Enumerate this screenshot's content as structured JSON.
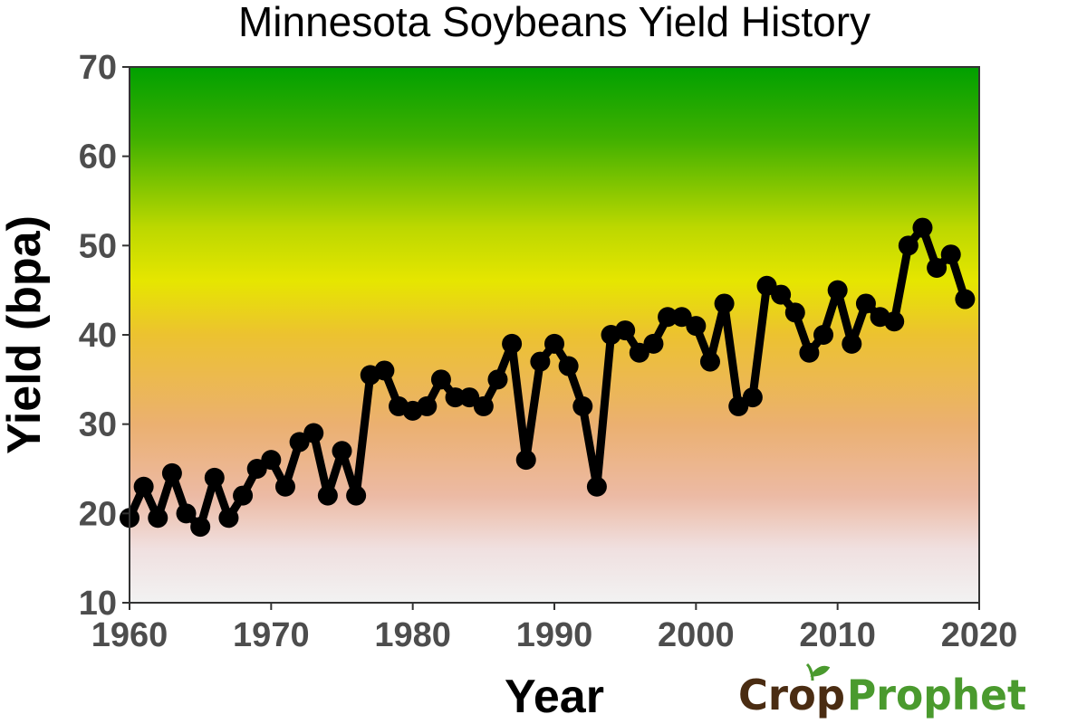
{
  "chart_data": {
    "type": "line",
    "title": "Minnesota Soybeans Yield History",
    "xlabel": "Year",
    "ylabel": "Yield (bpa)",
    "xlim": [
      1960,
      2020
    ],
    "ylim": [
      10,
      70
    ],
    "x_ticks": [
      "1960",
      "1970",
      "1980",
      "1990",
      "2000",
      "2010",
      "2020"
    ],
    "y_ticks": [
      "10",
      "20",
      "30",
      "40",
      "50",
      "60",
      "70"
    ],
    "grid": false,
    "background_gradient": [
      {
        "value": 70,
        "color": "#00a000"
      },
      {
        "value": 62,
        "color": "#40b000"
      },
      {
        "value": 52,
        "color": "#bcd800"
      },
      {
        "value": 46,
        "color": "#e6e600"
      },
      {
        "value": 40,
        "color": "#ecc230"
      },
      {
        "value": 30,
        "color": "#ebb070"
      },
      {
        "value": 22,
        "color": "#ecbaa4"
      },
      {
        "value": 16,
        "color": "#f0e0e0"
      },
      {
        "value": 10,
        "color": "#f2f2f2"
      }
    ],
    "line_color": "#000000",
    "series": [
      {
        "x": [
          1960,
          1961,
          1962,
          1963,
          1964,
          1965,
          1966,
          1967,
          1968,
          1969,
          1970,
          1971,
          1972,
          1973,
          1974,
          1975,
          1976,
          1977,
          1978,
          1979,
          1980,
          1981,
          1982,
          1983,
          1984,
          1985,
          1986,
          1987,
          1988,
          1989,
          1990,
          1991,
          1992,
          1993,
          1994,
          1995,
          1996,
          1997,
          1998,
          1999,
          2000,
          2001,
          2002,
          2003,
          2004,
          2005,
          2006,
          2007,
          2008,
          2009,
          2010,
          2011,
          2012,
          2013,
          2014,
          2015,
          2016,
          2017,
          2018,
          2019
        ],
        "y": [
          19.5,
          23,
          19.5,
          24.5,
          20,
          18.5,
          24,
          19.5,
          22,
          25,
          26,
          23,
          28,
          29,
          22,
          27,
          22,
          35.5,
          36,
          32,
          31.5,
          32,
          35,
          33,
          33,
          32,
          35,
          39,
          26,
          37,
          39,
          36.5,
          32,
          23,
          40,
          40.5,
          38,
          39,
          42,
          42,
          41,
          37,
          43.5,
          32,
          33,
          45.5,
          44.5,
          42.5,
          38,
          40,
          45,
          39,
          43.5,
          42,
          41.5,
          50,
          52,
          47.5,
          49,
          44
        ]
      }
    ]
  },
  "logo": {
    "part1": "Crop",
    "part2": "Prophet"
  }
}
